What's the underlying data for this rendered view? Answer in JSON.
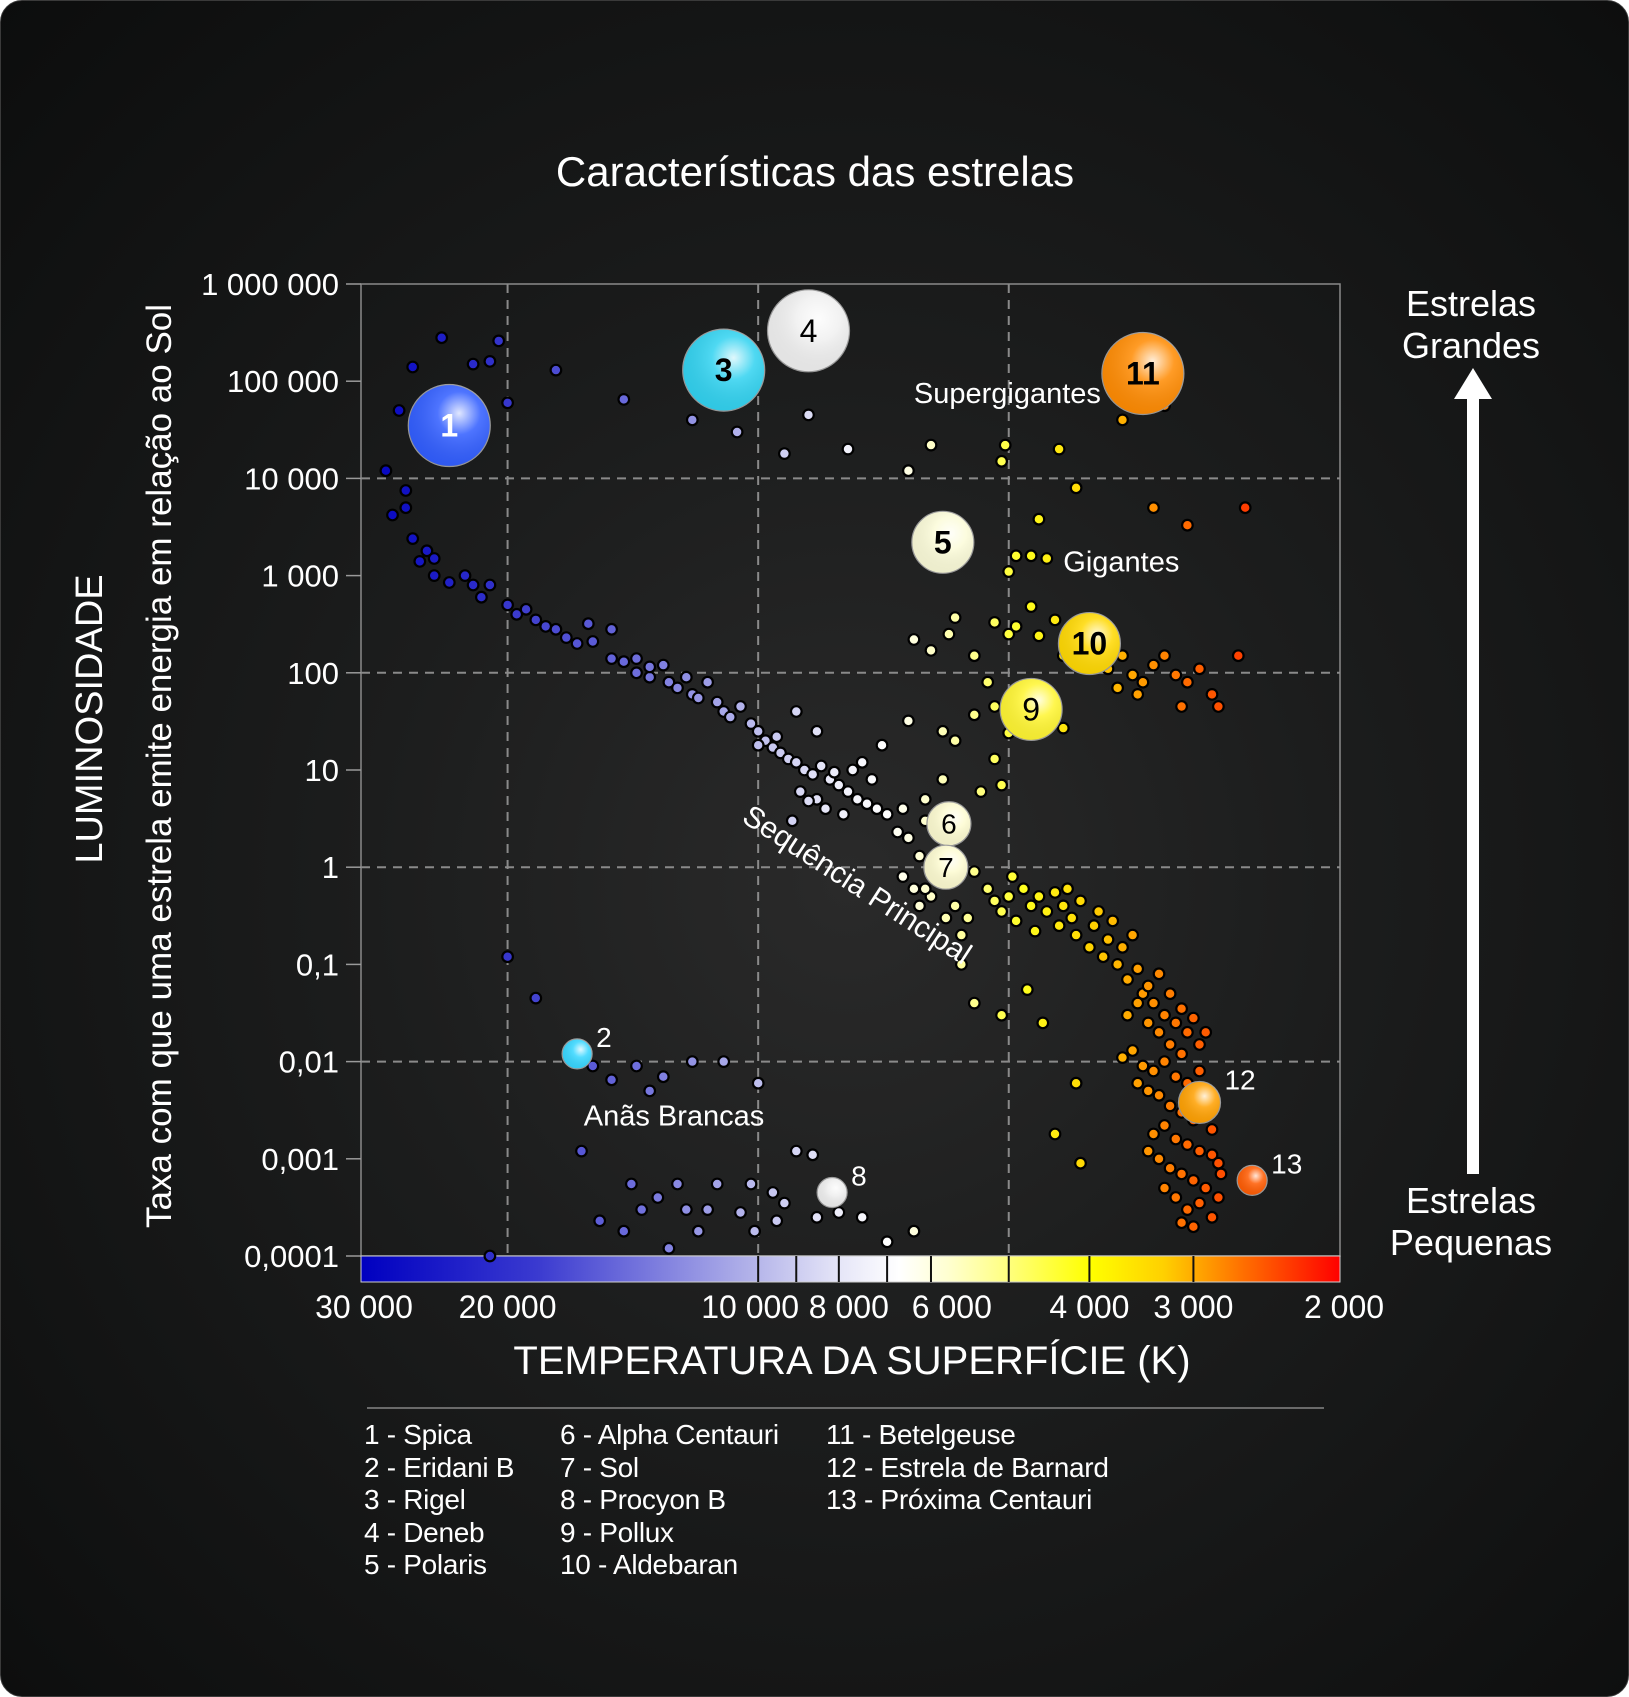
{
  "chart_data": {
    "type": "scatter",
    "title": "Características das estrelas",
    "xlabel": "TEMPERATURA DA SUPERFÍCIE (K)",
    "ylabel": "LUMINOSIDADE",
    "ylabel_sub": "Taxa com que uma estrela emite energia em relação ao Sol",
    "x_scale": "log-reversed",
    "y_scale": "log",
    "xlim": [
      30000,
      2000
    ],
    "ylim": [
      0.0001,
      1000000
    ],
    "grid": true,
    "x_gridlines": [
      20000,
      10000,
      5000
    ],
    "y_gridlines": [
      10000,
      100,
      1,
      0.01
    ],
    "x_ticks": [
      {
        "value": 30000,
        "label": "30 000"
      },
      {
        "value": 20000,
        "label": "20 000"
      },
      {
        "value": 10000,
        "label": "10 000"
      },
      {
        "value": 8000,
        "label": "8 000"
      },
      {
        "value": 6000,
        "label": "6 000"
      },
      {
        "value": 4000,
        "label": "4 000"
      },
      {
        "value": 3000,
        "label": "3 000"
      },
      {
        "value": 2000,
        "label": "2 000"
      }
    ],
    "y_ticks": [
      {
        "value": 1000000,
        "label": "1 000 000"
      },
      {
        "value": 100000,
        "label": "100 000"
      },
      {
        "value": 10000,
        "label": "10 000"
      },
      {
        "value": 1000,
        "label": "1 000"
      },
      {
        "value": 100,
        "label": "100"
      },
      {
        "value": 10,
        "label": "10"
      },
      {
        "value": 1,
        "label": "1"
      },
      {
        "value": 0.1,
        "label": "0,1"
      },
      {
        "value": 0.01,
        "label": "0,01"
      },
      {
        "value": 0.001,
        "label": "0,001"
      },
      {
        "value": 0.0001,
        "label": "0,0001"
      }
    ],
    "color_bar_separators": [
      10000,
      9000,
      8000,
      7000,
      6200,
      5000,
      4000,
      3000
    ],
    "region_labels": [
      {
        "text": "Supergigantes",
        "T": 6500,
        "L": 60000
      },
      {
        "text": "Gigantes",
        "T": 4300,
        "L": 1100
      },
      {
        "text": "Sequência Principal",
        "T": 10500,
        "L": 3
      },
      {
        "text": "Anãs Brancas",
        "T": 16200,
        "L": 0.0022
      }
    ],
    "side_labels": {
      "top": [
        "Estrelas",
        "Grandes"
      ],
      "bottom": [
        "Estrelas",
        "Pequenas"
      ]
    },
    "named_stars": [
      {
        "id": 1,
        "name": "Spica",
        "T": 23500,
        "L": 35000,
        "color": "#2f5cff",
        "size": "large",
        "label_inside": true
      },
      {
        "id": 2,
        "name": "Eridani B",
        "T": 16500,
        "L": 0.012,
        "color": "#35d6ff",
        "size": "small",
        "label_inside": false
      },
      {
        "id": 3,
        "name": "Rigel",
        "T": 11000,
        "L": 130000,
        "color": "#30d2f0",
        "size": "large",
        "label_inside": true
      },
      {
        "id": 4,
        "name": "Deneb",
        "T": 8700,
        "L": 330000,
        "color": "#f0f0f0",
        "size": "large",
        "label_inside": true
      },
      {
        "id": 5,
        "name": "Polaris",
        "T": 6000,
        "L": 2200,
        "color": "#fbfbd8",
        "size": "medium",
        "label_inside": true
      },
      {
        "id": 6,
        "name": "Alpha Centauri",
        "T": 5900,
        "L": 2.8,
        "color": "#fdfbd0",
        "size": "medium-small",
        "label_inside": true
      },
      {
        "id": 7,
        "name": "Sol",
        "T": 5950,
        "L": 1.0,
        "color": "#fdfbd0",
        "size": "medium-small",
        "label_inside": true
      },
      {
        "id": 8,
        "name": "Procyon B",
        "T": 8150,
        "L": 0.00045,
        "color": "#eeeeee",
        "size": "small",
        "label_inside": false
      },
      {
        "id": 9,
        "name": "Pollux",
        "T": 4700,
        "L": 42,
        "color": "#fff530",
        "size": "medium",
        "label_inside": true
      },
      {
        "id": 10,
        "name": "Aldebaran",
        "T": 4000,
        "L": 200,
        "color": "#ffd800",
        "size": "medium",
        "label_inside": true
      },
      {
        "id": 11,
        "name": "Betelgeuse",
        "T": 3450,
        "L": 120000,
        "color": "#ff8a00",
        "size": "large",
        "label_inside": true
      },
      {
        "id": 12,
        "name": "Estrela de Barnard",
        "T": 2950,
        "L": 0.0038,
        "color": "#ffa000",
        "size": "small-medium",
        "label_inside": false
      },
      {
        "id": 13,
        "name": "Próxima Centauri",
        "T": 2550,
        "L": 0.0006,
        "color": "#ff5a00",
        "size": "small",
        "label_inside": false
      }
    ],
    "field_stars_note": "background dots approximate [T (K), L (L_sun)] positions read off the diagram",
    "field_stars": [
      [
        27000,
        50000
      ],
      [
        24000,
        280000
      ],
      [
        22000,
        150000
      ],
      [
        20500,
        260000
      ],
      [
        21000,
        160000
      ],
      [
        26000,
        140000
      ],
      [
        28000,
        12000
      ],
      [
        26500,
        5000
      ],
      [
        25500,
        30000
      ],
      [
        23000,
        18000
      ],
      [
        20000,
        60000
      ],
      [
        17500,
        130000
      ],
      [
        14500,
        65000
      ],
      [
        12000,
        40000
      ],
      [
        10600,
        30000
      ],
      [
        8700,
        45000
      ],
      [
        9300,
        18000
      ],
      [
        7800,
        20000
      ],
      [
        6600,
        12000
      ],
      [
        6200,
        22000
      ],
      [
        5050,
        22000
      ],
      [
        5100,
        15000
      ],
      [
        4350,
        20000
      ],
      [
        3650,
        40000
      ],
      [
        3250,
        56000
      ],
      [
        4150,
        8000
      ],
      [
        3350,
        5000
      ],
      [
        3050,
        3300
      ],
      [
        2600,
        5000
      ],
      [
        27500,
        4200
      ],
      [
        26500,
        7500
      ],
      [
        26000,
        2400
      ],
      [
        25000,
        1800
      ],
      [
        25500,
        1400
      ],
      [
        24500,
        1500
      ],
      [
        24500,
        1000
      ],
      [
        23500,
        850
      ],
      [
        22500,
        1000
      ],
      [
        22000,
        800
      ],
      [
        21000,
        800
      ],
      [
        21500,
        600
      ],
      [
        20000,
        500
      ],
      [
        19500,
        400
      ],
      [
        19000,
        450
      ],
      [
        18500,
        350
      ],
      [
        18000,
        300
      ],
      [
        17500,
        280
      ],
      [
        17000,
        230
      ],
      [
        16500,
        200
      ],
      [
        16000,
        320
      ],
      [
        15800,
        210
      ],
      [
        15000,
        280
      ],
      [
        15000,
        140
      ],
      [
        14500,
        130
      ],
      [
        14000,
        140
      ],
      [
        14000,
        100
      ],
      [
        13500,
        90
      ],
      [
        13500,
        115
      ],
      [
        13000,
        120
      ],
      [
        12800,
        80
      ],
      [
        12500,
        70
      ],
      [
        12200,
        90
      ],
      [
        12000,
        60
      ],
      [
        11800,
        55
      ],
      [
        11500,
        80
      ],
      [
        11200,
        50
      ],
      [
        11000,
        40
      ],
      [
        10800,
        35
      ],
      [
        10500,
        45
      ],
      [
        10200,
        30
      ],
      [
        10000,
        25
      ],
      [
        9800,
        20
      ],
      [
        9600,
        17
      ],
      [
        9400,
        15
      ],
      [
        9200,
        13
      ],
      [
        9000,
        12
      ],
      [
        8800,
        10
      ],
      [
        8600,
        9
      ],
      [
        8400,
        11
      ],
      [
        8200,
        8
      ],
      [
        8000,
        7
      ],
      [
        7800,
        6
      ],
      [
        7600,
        5
      ],
      [
        7400,
        4.5
      ],
      [
        7200,
        4
      ],
      [
        7000,
        3.5
      ],
      [
        8900,
        6
      ],
      [
        8500,
        5
      ],
      [
        8300,
        4
      ],
      [
        8700,
        4.8
      ],
      [
        7900,
        3.5
      ],
      [
        9100,
        3
      ],
      [
        8100,
        9.5
      ],
      [
        7700,
        10
      ],
      [
        7500,
        12
      ],
      [
        7300,
        8
      ],
      [
        6700,
        4
      ],
      [
        6300,
        3
      ],
      [
        6600,
        2
      ],
      [
        9500,
        22
      ],
      [
        9000,
        40
      ],
      [
        8500,
        25
      ],
      [
        10000,
        18
      ],
      [
        6800,
        2.3
      ],
      [
        6400,
        1.3
      ],
      [
        6700,
        0.8
      ],
      [
        6500,
        0.6
      ],
      [
        6200,
        0.5
      ],
      [
        6000,
        0.7
      ],
      [
        5800,
        0.4
      ],
      [
        5600,
        0.3
      ],
      [
        5500,
        0.9
      ],
      [
        5300,
        0.6
      ],
      [
        5200,
        0.45
      ],
      [
        5100,
        0.35
      ],
      [
        5000,
        0.5
      ],
      [
        4950,
        0.8
      ],
      [
        4900,
        0.28
      ],
      [
        4800,
        0.6
      ],
      [
        4700,
        0.4
      ],
      [
        4650,
        0.22
      ],
      [
        4600,
        0.5
      ],
      [
        4500,
        0.35
      ],
      [
        4400,
        0.55
      ],
      [
        4350,
        0.25
      ],
      [
        4300,
        0.4
      ],
      [
        4250,
        0.6
      ],
      [
        4200,
        0.3
      ],
      [
        4150,
        0.2
      ],
      [
        4100,
        0.45
      ],
      [
        4000,
        0.15
      ],
      [
        3950,
        0.25
      ],
      [
        3900,
        0.35
      ],
      [
        3850,
        0.12
      ],
      [
        3800,
        0.18
      ],
      [
        3750,
        0.28
      ],
      [
        3700,
        0.1
      ],
      [
        3650,
        0.15
      ],
      [
        3600,
        0.07
      ],
      [
        3550,
        0.2
      ],
      [
        3500,
        0.09
      ],
      [
        3450,
        0.05
      ],
      [
        3400,
        0.06
      ],
      [
        3350,
        0.04
      ],
      [
        3300,
        0.08
      ],
      [
        3250,
        0.03
      ],
      [
        3200,
        0.05
      ],
      [
        3150,
        0.025
      ],
      [
        3100,
        0.035
      ],
      [
        3050,
        0.02
      ],
      [
        3000,
        0.028
      ],
      [
        2950,
        0.015
      ],
      [
        2900,
        0.02
      ],
      [
        3600,
        0.03
      ],
      [
        3500,
        0.04
      ],
      [
        3400,
        0.025
      ],
      [
        3300,
        0.02
      ],
      [
        3200,
        0.015
      ],
      [
        3100,
        0.012
      ],
      [
        3650,
        0.011
      ],
      [
        3550,
        0.013
      ],
      [
        3450,
        0.009
      ],
      [
        3350,
        0.008
      ],
      [
        3250,
        0.01
      ],
      [
        3150,
        0.007
      ],
      [
        3050,
        0.006
      ],
      [
        2950,
        0.008
      ],
      [
        3400,
        0.005
      ],
      [
        3300,
        0.0045
      ],
      [
        3200,
        0.0035
      ],
      [
        3100,
        0.003
      ],
      [
        3000,
        0.0025
      ],
      [
        2900,
        0.0028
      ],
      [
        2850,
        0.002
      ],
      [
        3500,
        0.006
      ],
      [
        3250,
        0.0022
      ],
      [
        3350,
        0.0018
      ],
      [
        3150,
        0.0016
      ],
      [
        3050,
        0.0014
      ],
      [
        2950,
        0.0012
      ],
      [
        2850,
        0.0011
      ],
      [
        2800,
        0.0009
      ],
      [
        3400,
        0.0012
      ],
      [
        3300,
        0.001
      ],
      [
        3200,
        0.0008
      ],
      [
        3100,
        0.0007
      ],
      [
        3000,
        0.0006
      ],
      [
        2900,
        0.0005
      ],
      [
        2800,
        0.0004
      ],
      [
        3250,
        0.0005
      ],
      [
        3150,
        0.0004
      ],
      [
        3050,
        0.0003
      ],
      [
        2950,
        0.00035
      ],
      [
        2850,
        0.00025
      ],
      [
        3100,
        0.00022
      ],
      [
        3000,
        0.0002
      ],
      [
        2780,
        0.0007
      ],
      [
        4150,
        0.006
      ],
      [
        4400,
        0.0018
      ],
      [
        4100,
        0.0009
      ],
      [
        4750,
        0.055
      ],
      [
        5100,
        0.03
      ],
      [
        5500,
        0.04
      ],
      [
        5700,
        0.1
      ],
      [
        4550,
        0.025
      ],
      [
        6300,
        0.6
      ],
      [
        6400,
        0.4
      ],
      [
        5950,
        0.3
      ],
      [
        5700,
        0.2
      ],
      [
        5800,
        20
      ],
      [
        6000,
        8
      ],
      [
        6300,
        5
      ],
      [
        5200,
        13
      ],
      [
        5400,
        6
      ],
      [
        5100,
        7
      ],
      [
        5000,
        24
      ],
      [
        5200,
        45
      ],
      [
        5500,
        37
      ],
      [
        6000,
        25
      ],
      [
        6600,
        32
      ],
      [
        7100,
        18
      ],
      [
        5300,
        80
      ],
      [
        5500,
        150
      ],
      [
        5900,
        250
      ],
      [
        6200,
        170
      ],
      [
        5800,
        370
      ],
      [
        6500,
        220
      ],
      [
        5000,
        250
      ],
      [
        5200,
        330
      ],
      [
        4700,
        480
      ],
      [
        4900,
        300
      ],
      [
        4600,
        240
      ],
      [
        4400,
        350
      ],
      [
        4300,
        150
      ],
      [
        4200,
        210
      ],
      [
        4050,
        300
      ],
      [
        3950,
        170
      ],
      [
        3850,
        120
      ],
      [
        3750,
        220
      ],
      [
        3650,
        150
      ],
      [
        3550,
        95
      ],
      [
        3450,
        80
      ],
      [
        3350,
        120
      ],
      [
        3250,
        150
      ],
      [
        3150,
        95
      ],
      [
        3050,
        80
      ],
      [
        2950,
        110
      ],
      [
        2850,
        60
      ],
      [
        2800,
        45
      ],
      [
        2650,
        150
      ],
      [
        3700,
        70
      ],
      [
        3500,
        60
      ],
      [
        3100,
        45
      ],
      [
        4900,
        1600
      ],
      [
        4700,
        1600
      ],
      [
        4500,
        1500
      ],
      [
        4600,
        3800
      ],
      [
        4900,
        50
      ],
      [
        4650,
        25
      ],
      [
        4300,
        27
      ],
      [
        3800,
        110
      ],
      [
        5000,
        1100
      ],
      [
        4400,
        35
      ],
      [
        15800,
        0.009
      ],
      [
        15000,
        0.0065
      ],
      [
        14000,
        0.009
      ],
      [
        13000,
        0.007
      ],
      [
        13500,
        0.005
      ],
      [
        12000,
        0.01
      ],
      [
        11000,
        0.01
      ],
      [
        10000,
        0.006
      ],
      [
        16300,
        0.0012
      ],
      [
        14200,
        0.00055
      ],
      [
        12500,
        0.00055
      ],
      [
        11200,
        0.00055
      ],
      [
        10200,
        0.00055
      ],
      [
        9600,
        0.00045
      ],
      [
        9300,
        0.00035
      ],
      [
        8500,
        0.00025
      ],
      [
        13200,
        0.0004
      ],
      [
        12200,
        0.0003
      ],
      [
        11500,
        0.0003
      ],
      [
        10500,
        0.00028
      ],
      [
        9500,
        0.00023
      ],
      [
        13800,
        0.0003
      ],
      [
        15500,
        0.00023
      ],
      [
        14500,
        0.00018
      ],
      [
        11800,
        0.00018
      ],
      [
        12800,
        0.00012
      ],
      [
        10100,
        0.00018
      ],
      [
        9000,
        0.0012
      ],
      [
        8600,
        0.0011
      ],
      [
        8000,
        0.00028
      ],
      [
        7500,
        0.00025
      ],
      [
        7000,
        0.00014
      ],
      [
        6500,
        0.00018
      ],
      [
        20000,
        0.12
      ],
      [
        18500,
        0.045
      ],
      [
        21000,
        0.0001
      ]
    ]
  },
  "legend": {
    "columns": [
      [
        "1 - Spica",
        "2 - Eridani B",
        "3 - Rigel",
        "4 - Deneb",
        "5 - Polaris"
      ],
      [
        "6 - Alpha Centauri",
        "7 - Sol",
        "8 - Procyon B",
        "9 - Pollux",
        "10 - Aldebaran"
      ],
      [
        "11 - Betelgeuse",
        "12 - Estrela de Barnard",
        "13 - Próxima Centauri"
      ]
    ]
  }
}
